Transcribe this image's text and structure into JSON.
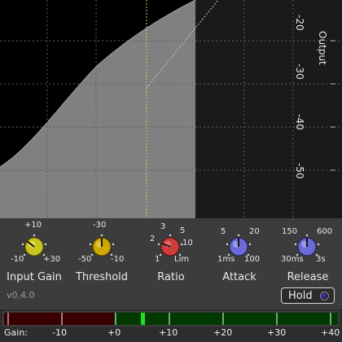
{
  "display": {
    "axis_title": "Output",
    "y_ticks": [
      "-20",
      "-30",
      "-40",
      "-50"
    ]
  },
  "knobs": [
    {
      "id": "input-gain",
      "label": "Input Gain",
      "color": "#c8c420",
      "ticks": {
        "top": "+10",
        "left": "-10",
        "right": "+30"
      }
    },
    {
      "id": "threshold",
      "label": "Threshold",
      "color": "#d0a800",
      "ticks": {
        "top": "-30",
        "left": "-50",
        "right": "-10"
      }
    },
    {
      "id": "ratio",
      "label": "Ratio",
      "color": "#d03c3c",
      "ticks": {
        "t1": "3",
        "t2": "5",
        "t3": "2",
        "t4": "10",
        "t5": "1",
        "t6": "Lim"
      }
    },
    {
      "id": "attack",
      "label": "Attack",
      "color": "#6b6bd8",
      "ticks": {
        "top_left": "5",
        "top_right": "20",
        "left": "1ms",
        "right": "100"
      }
    },
    {
      "id": "release",
      "label": "Release",
      "color": "#6b6bd8",
      "ticks": {
        "top_left": "150",
        "top_right": "600",
        "left": "30ms",
        "right": "3s"
      }
    }
  ],
  "version": "v0.4.0",
  "hold": {
    "label": "Hold",
    "active": false,
    "led_color": "#2a2a8a"
  },
  "meter": {
    "label": "Gain:",
    "ticks": [
      "-10",
      "+0",
      "+10",
      "+20",
      "+30",
      "+40"
    ],
    "level_db": 2,
    "colors": {
      "negative": "#3a0000",
      "positive": "#003a00",
      "indicator": "#22dd22"
    }
  }
}
